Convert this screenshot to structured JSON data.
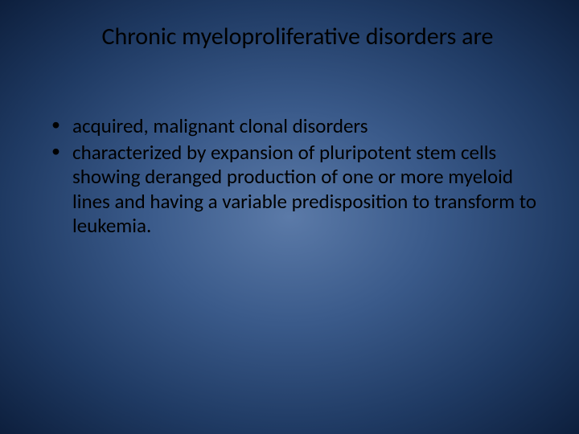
{
  "slide": {
    "title": "Chronic myeloproliferative disorders are",
    "bullets": [
      "acquired, malignant clonal disorders",
      "characterized by expansion of pluripotent stem cells showing deranged production of one or more myeloid lines and having a variable predisposition to transform to leukemia."
    ],
    "style": {
      "background_gradient": {
        "type": "radial",
        "stops": [
          "#5b7aa8",
          "#3a5a8a",
          "#1f3a63",
          "#0d1f3d"
        ]
      },
      "text_color": "#000000",
      "title_fontsize": 30,
      "title_fontweight": 400,
      "body_fontsize": 25,
      "font_family": "Calibri",
      "bullet_glyph": "•"
    }
  }
}
